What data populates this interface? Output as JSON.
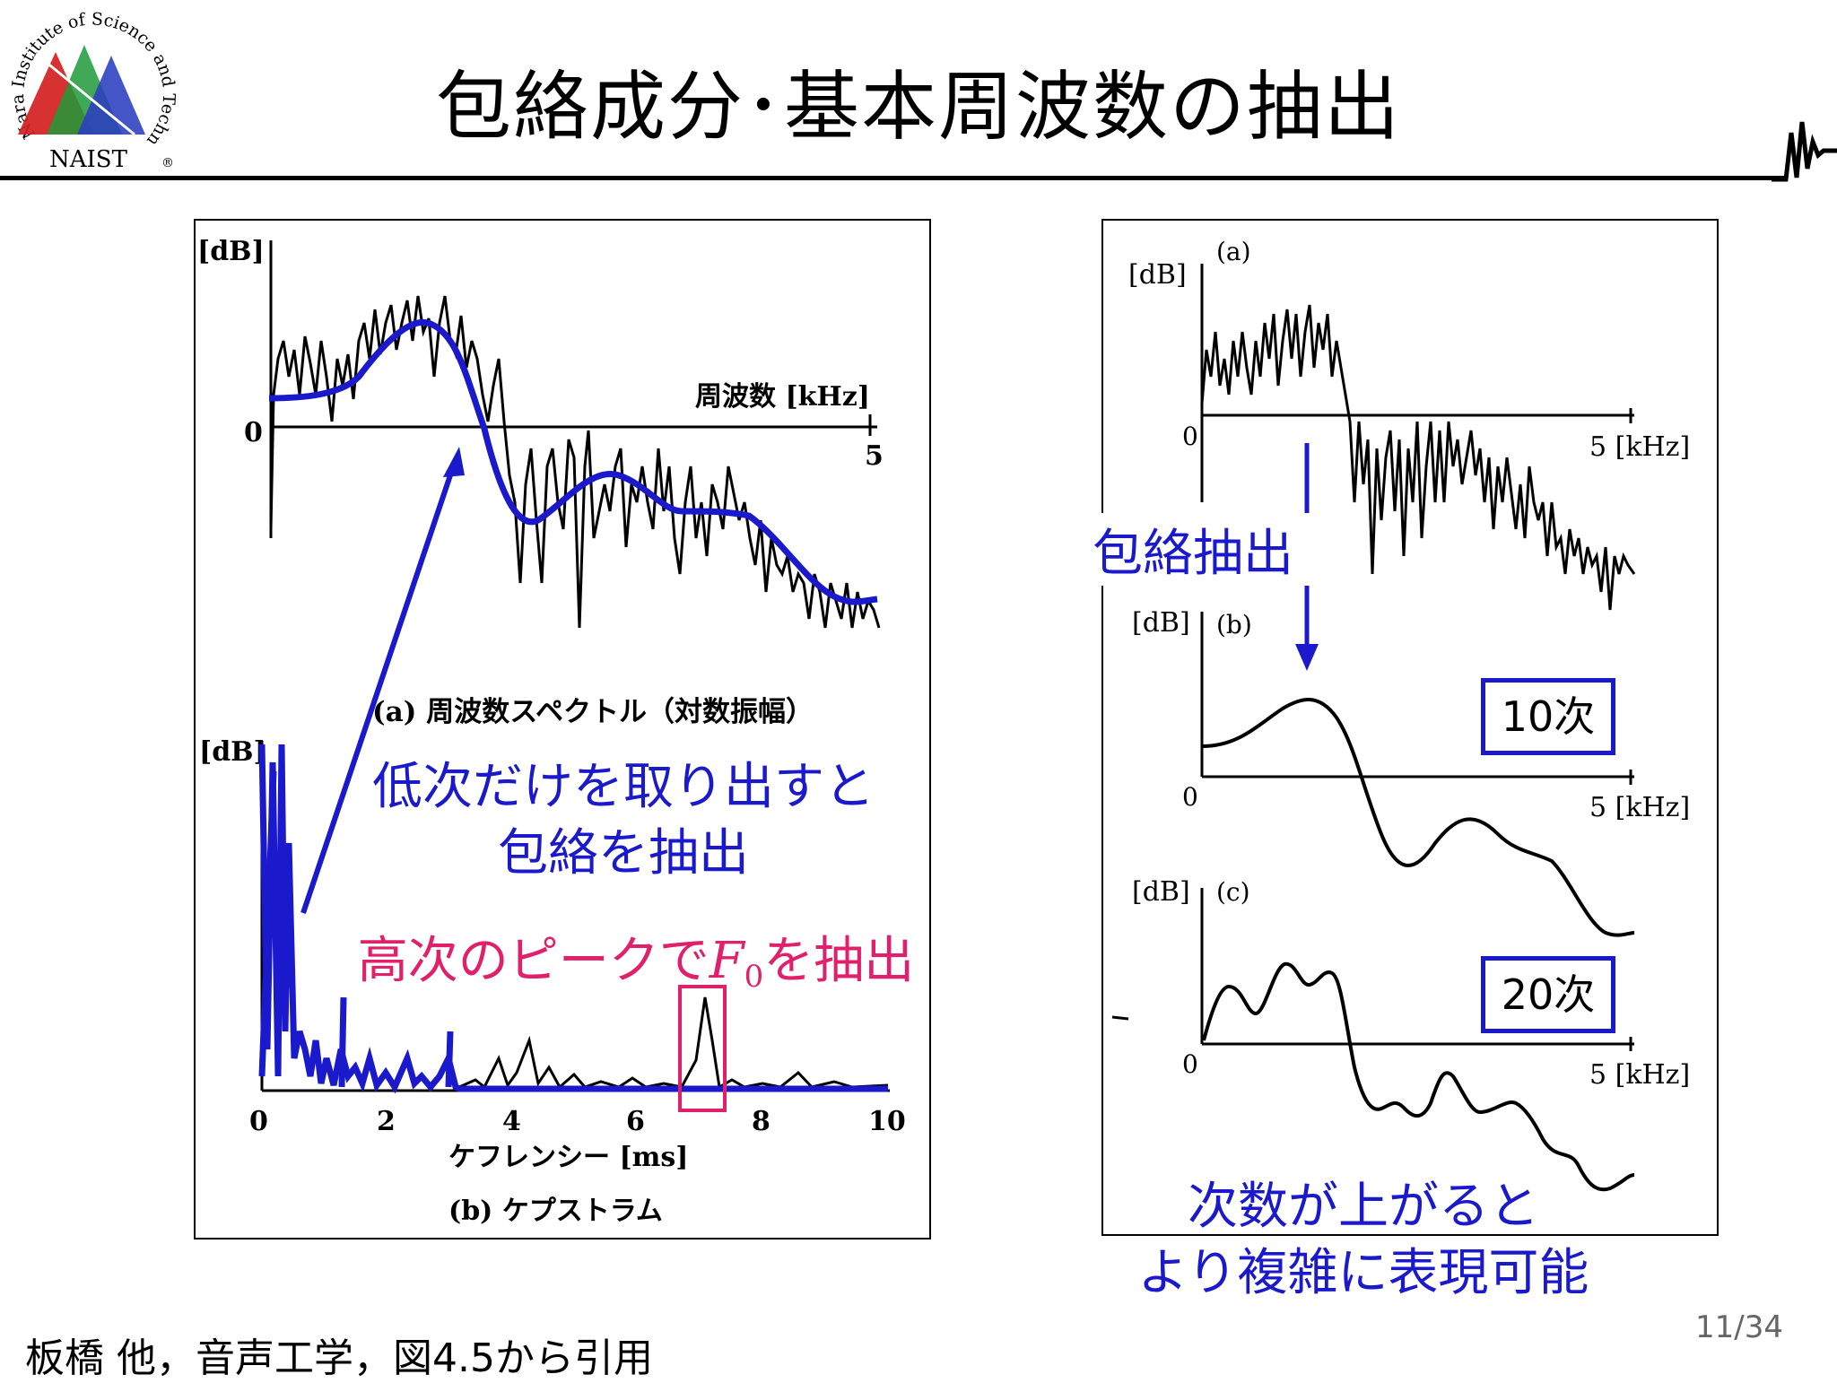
{
  "logo": {
    "text_arc": "Nara Institute of Science and Technology",
    "abbr": "NAIST",
    "reg": "®"
  },
  "slide": {
    "title": "包絡成分･基本周波数の抽出",
    "page": "11/34",
    "citation": "板橋 他，音声工学，図4.5から引用"
  },
  "left_figure": {
    "a_ylabel": "[dB]",
    "a_zero": "0",
    "a_xlabel": "周波数 [kHz]",
    "a_xtick_end": "5",
    "a_caption": "(a)  周波数スペクトル（対数振幅）",
    "b_ylabel": "[dB]",
    "b_xticks": [
      "0",
      "2",
      "4",
      "6",
      "8",
      "10"
    ],
    "b_xlabel": "ケフレンシー [ms]",
    "b_caption": "(b)  ケプストラム"
  },
  "annotations": {
    "low_order_line1": "低次だけを取り出すと",
    "low_order_line2": "包絡を抽出",
    "high_order_pre": "高次のピークで",
    "high_order_sym": "F",
    "high_order_sub": "0",
    "high_order_post": "を抽出",
    "envelope_extract": "包絡抽出",
    "box_10": "10次",
    "box_20": "20次",
    "more_order_line1": "次数が上がると",
    "more_order_line2": "より複雑に表現可能"
  },
  "right_figure": {
    "a_ylabel": "[dB]",
    "a_tag": "(a)",
    "a_zero": "0",
    "a_xtick": "5 [kHz]",
    "b_ylabel": "[dB]",
    "b_tag": "(b)",
    "b_zero": "0",
    "b_xtick": "5 [kHz]",
    "c_ylabel": "[dB]",
    "c_tag": "(c)",
    "c_zero": "0",
    "c_xtick": "5 [kHz]"
  },
  "colors": {
    "blue": "#1a1acc",
    "magenta": "#e0206a",
    "logo_red": "#d42020",
    "logo_green": "#1f9a3a",
    "logo_blue": "#2a3ec0"
  }
}
